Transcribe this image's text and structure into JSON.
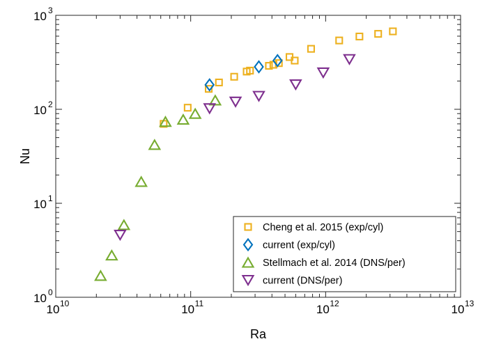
{
  "chart_data": {
    "type": "scatter",
    "xlabel": "Ra",
    "ylabel": "Nu",
    "xscale": "log",
    "yscale": "log",
    "xlim": [
      10000000000.0,
      10000000000000.0
    ],
    "ylim": [
      1,
      1000
    ],
    "grid": false,
    "legend_position": "bottom-right",
    "x_ticks": [
      {
        "value": 10000000000.0,
        "base": "10",
        "exp": "10"
      },
      {
        "value": 100000000000.0,
        "base": "10",
        "exp": "11"
      },
      {
        "value": 1000000000000.0,
        "base": "10",
        "exp": "12"
      },
      {
        "value": 10000000000000.0,
        "base": "10",
        "exp": "13"
      }
    ],
    "y_ticks": [
      {
        "value": 1,
        "base": "10",
        "exp": "0"
      },
      {
        "value": 10,
        "base": "10",
        "exp": "1"
      },
      {
        "value": 100,
        "base": "10",
        "exp": "2"
      },
      {
        "value": 1000,
        "base": "10",
        "exp": "3"
      }
    ],
    "series": [
      {
        "name": "Cheng et al. 2015 (exp/cyl)",
        "marker": "square",
        "color": "#EDB120",
        "points": [
          [
            63000000000.0,
            70
          ],
          [
            95000000000.0,
            104
          ],
          [
            136000000000.0,
            165
          ],
          [
            162000000000.0,
            193
          ],
          [
            210000000000.0,
            222
          ],
          [
            260000000000.0,
            252
          ],
          [
            275000000000.0,
            258
          ],
          [
            380000000000.0,
            290
          ],
          [
            410000000000.0,
            298
          ],
          [
            450000000000.0,
            310
          ],
          [
            540000000000.0,
            360
          ],
          [
            590000000000.0,
            330
          ],
          [
            780000000000.0,
            440
          ],
          [
            1260000000000.0,
            540
          ],
          [
            1780000000000.0,
            595
          ],
          [
            2450000000000.0,
            635
          ],
          [
            3150000000000.0,
            675
          ]
        ]
      },
      {
        "name": "current (exp/cyl)",
        "marker": "diamond",
        "color": "#0072BD",
        "points": [
          [
            138000000000.0,
            182
          ],
          [
            320000000000.0,
            283
          ],
          [
            440000000000.0,
            330
          ]
        ]
      },
      {
        "name": "Stellmach et al. 2014 (DNS/per)",
        "marker": "triangle-up",
        "color": "#77AC30",
        "points": [
          [
            21500000000.0,
            1.7
          ],
          [
            26000000000.0,
            2.8
          ],
          [
            32000000000.0,
            5.9
          ],
          [
            43000000000.0,
            17
          ],
          [
            54000000000.0,
            42
          ],
          [
            65000000000.0,
            74
          ],
          [
            88000000000.0,
            78
          ],
          [
            108000000000.0,
            90
          ],
          [
            152000000000.0,
            125
          ]
        ]
      },
      {
        "name": "current (DNS/per)",
        "marker": "triangle-down",
        "color": "#7E2F8E",
        "points": [
          [
            30000000000.0,
            4.6
          ],
          [
            138000000000.0,
            102
          ],
          [
            215000000000.0,
            120
          ],
          [
            320000000000.0,
            138
          ],
          [
            600000000000.0,
            183
          ],
          [
            960000000000.0,
            245
          ],
          [
            1500000000000.0,
            340
          ]
        ]
      }
    ]
  }
}
